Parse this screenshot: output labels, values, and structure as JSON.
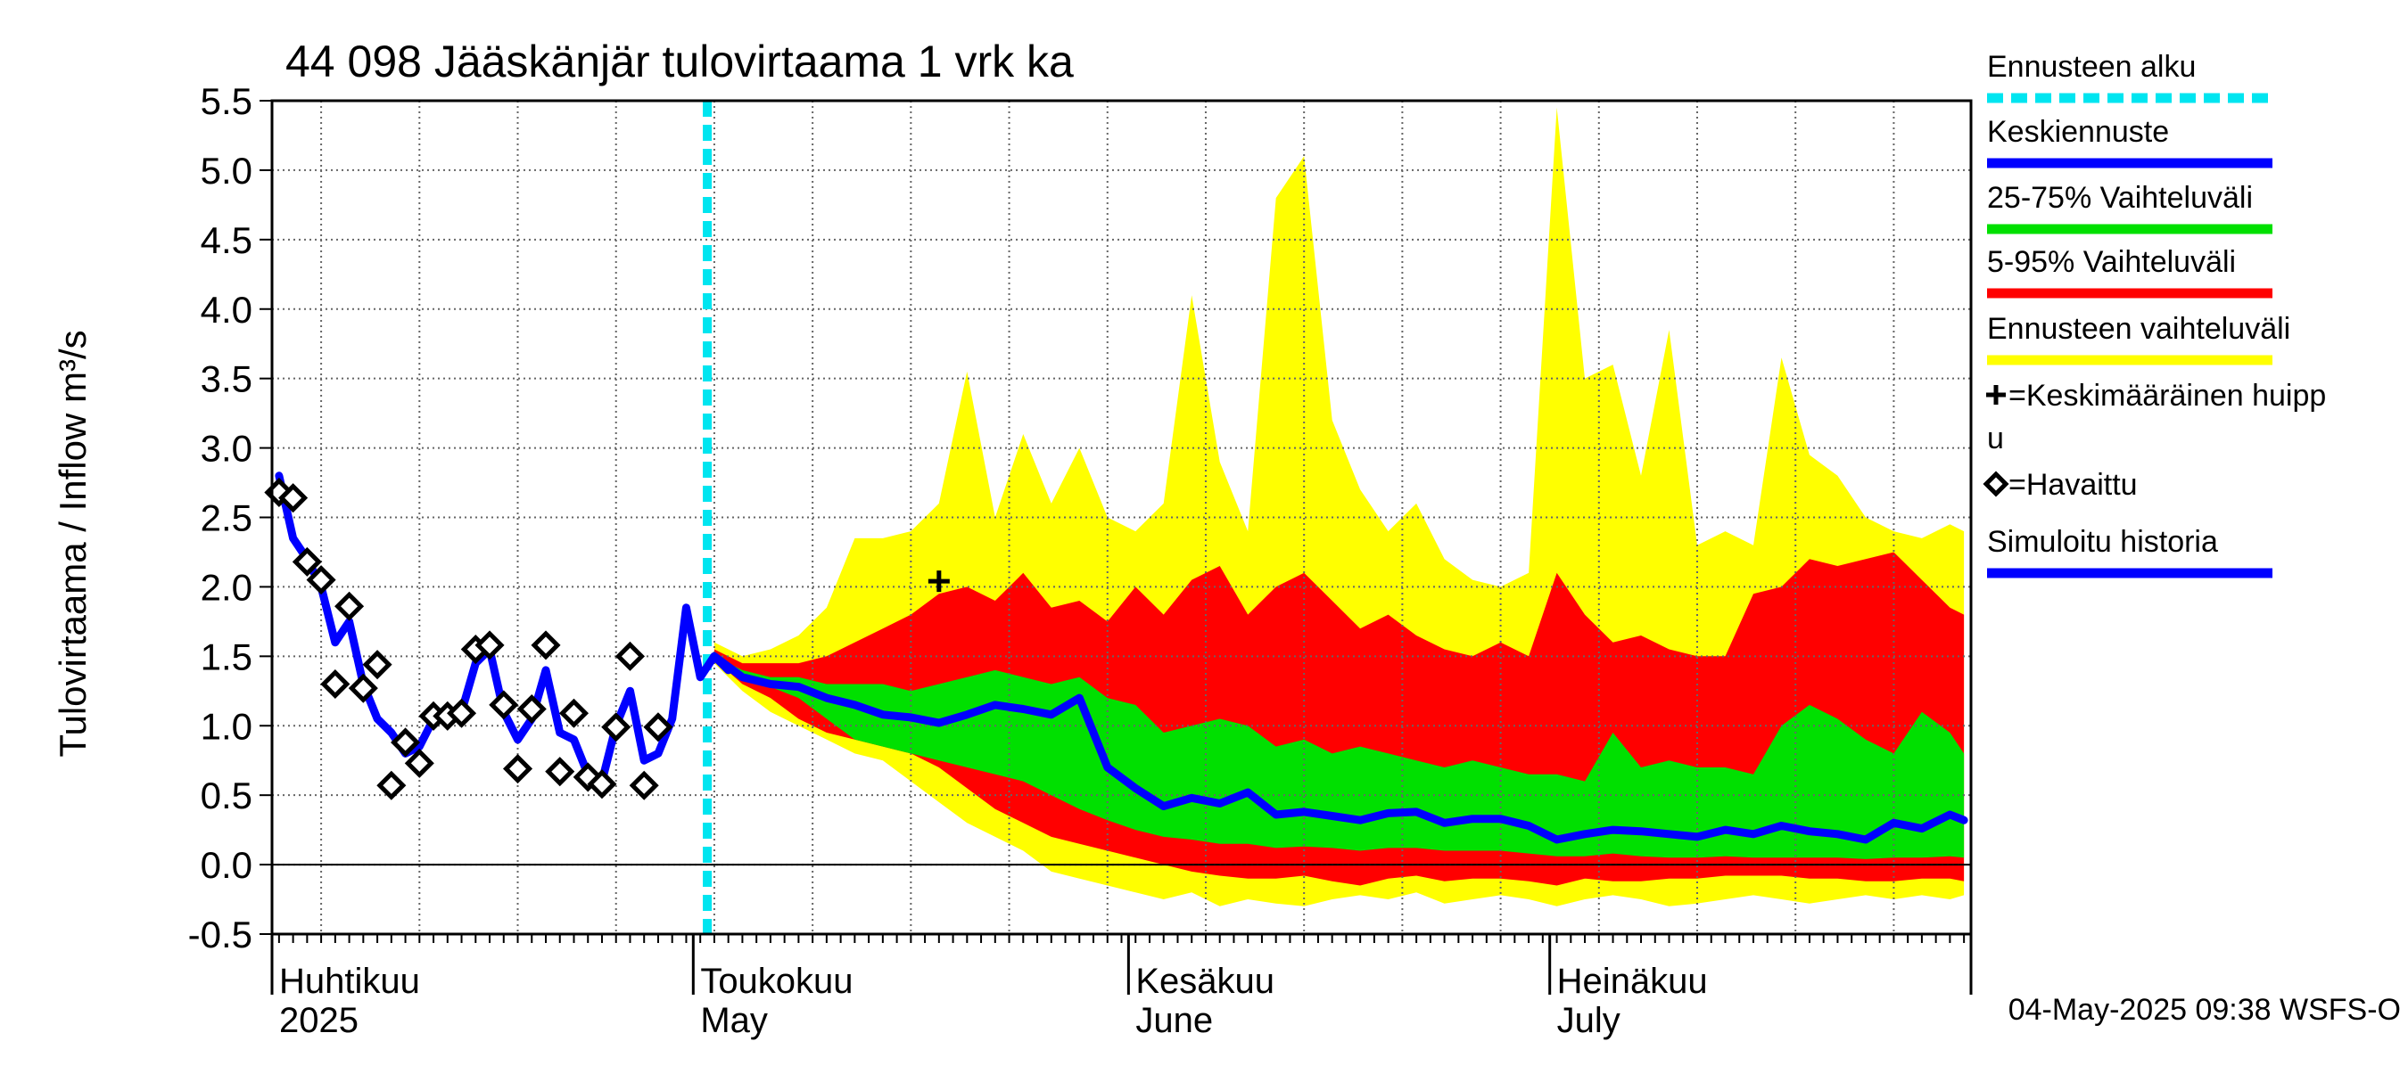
{
  "chart_data": {
    "type": "area",
    "title": "44 098 Jääskänjär tulovirtaama 1 vrk ka",
    "ylabel": "Tulovirtaama / Inflow    m³/s",
    "ylim": [
      -0.5,
      5.5
    ],
    "yticks": [
      "-0.5",
      "0.0",
      "0.5",
      "1.0",
      "1.5",
      "2.0",
      "2.5",
      "3.0",
      "3.5",
      "4.0",
      "4.5",
      "5.0",
      "5.5"
    ],
    "x_unit": "days since 2025-04-01",
    "xlim": [
      -0.5,
      120.5
    ],
    "month_labels": [
      {
        "day": 0,
        "fi": "Huhtikuu",
        "en": "2025"
      },
      {
        "day": 30,
        "fi": "Toukokuu",
        "en": "May"
      },
      {
        "day": 61,
        "fi": "Kesäkuu",
        "en": "June"
      },
      {
        "day": 91,
        "fi": "Heinäkuu",
        "en": "July"
      }
    ],
    "forecast_start_day": 30.5,
    "legend": [
      {
        "label": "Ennusteen alku",
        "color": "#00e5f0",
        "style": "dashed"
      },
      {
        "label": "Keskiennuste",
        "color": "#0000ff",
        "style": "solid"
      },
      {
        "label": "25-75% Vaihteluväli",
        "color": "#00e000",
        "style": "solid"
      },
      {
        "label": "5-95% Vaihteluväli",
        "color": "#ff0000",
        "style": "solid"
      },
      {
        "label": "Ennusteen vaihteluväli",
        "color": "#ffff00",
        "style": "solid"
      },
      {
        "label": "✚=Keskimääräinen huippu",
        "color": "#000000",
        "style": "marker"
      },
      {
        "label": "◇=Havaittu",
        "color": "#000000",
        "style": "marker"
      },
      {
        "label": "Simuloitu historia",
        "color": "#0000ff",
        "style": "solid"
      }
    ],
    "footer": "04-May-2025 09:38 WSFS-O",
    "colors": {
      "sim": "#0000ff",
      "p25_75": "#00e000",
      "p5_95": "#ff0000",
      "full": "#ffff00",
      "forecast_start": "#00e5f0",
      "grid": "#666666"
    },
    "series": [
      {
        "name": "Simuloitu historia",
        "x": [
          0,
          1,
          2,
          3,
          4,
          5,
          6,
          7,
          8,
          9,
          10,
          11,
          12,
          13,
          14,
          15,
          16,
          17,
          18,
          19,
          20,
          21,
          22,
          23,
          24,
          25,
          26,
          27,
          28,
          29,
          30,
          31,
          32
        ],
        "values": [
          2.8,
          2.35,
          2.2,
          2.0,
          1.6,
          1.75,
          1.3,
          1.05,
          0.95,
          0.8,
          0.85,
          1.05,
          1.05,
          1.1,
          1.45,
          1.55,
          1.1,
          0.9,
          1.05,
          1.4,
          0.95,
          0.9,
          0.65,
          0.6,
          1.0,
          1.25,
          0.75,
          0.8,
          1.05,
          1.85,
          1.35,
          1.5,
          1.4
        ]
      },
      {
        "name": "Havaittu",
        "x": [
          0,
          1,
          2,
          3,
          4,
          5,
          6,
          7,
          8,
          9,
          10,
          11,
          12,
          13,
          14,
          15,
          16,
          17,
          18,
          19,
          20,
          21,
          22,
          23,
          24,
          25,
          26,
          27
        ],
        "values": [
          2.68,
          2.64,
          2.18,
          2.05,
          1.3,
          1.86,
          1.27,
          1.44,
          0.57,
          0.88,
          0.73,
          1.07,
          1.07,
          1.09,
          1.55,
          1.58,
          1.15,
          0.69,
          1.12,
          1.58,
          0.67,
          1.09,
          0.63,
          0.58,
          0.99,
          1.5,
          0.57,
          0.99
        ]
      },
      {
        "name": "Keskimääräinen huippu",
        "x": [
          47
        ],
        "values": [
          2.04
        ]
      },
      {
        "name": "Keskiennuste",
        "x": [
          31,
          33,
          35,
          37,
          39,
          41,
          43,
          45,
          47,
          49,
          51,
          53,
          55,
          57,
          59,
          61,
          63,
          65,
          67,
          69,
          71,
          73,
          75,
          77,
          79,
          81,
          83,
          85,
          87,
          89,
          91,
          93,
          95,
          97,
          99,
          101,
          103,
          105,
          107,
          109,
          111,
          113,
          115,
          117,
          119,
          120
        ],
        "values": [
          1.5,
          1.35,
          1.3,
          1.28,
          1.2,
          1.15,
          1.08,
          1.06,
          1.02,
          1.08,
          1.15,
          1.12,
          1.08,
          1.2,
          0.7,
          0.55,
          0.42,
          0.48,
          0.44,
          0.52,
          0.36,
          0.38,
          0.35,
          0.32,
          0.37,
          0.38,
          0.3,
          0.33,
          0.33,
          0.28,
          0.18,
          0.22,
          0.25,
          0.24,
          0.22,
          0.2,
          0.25,
          0.22,
          0.28,
          0.24,
          0.22,
          0.18,
          0.3,
          0.26,
          0.36,
          0.32
        ]
      },
      {
        "name": "25-75% Vaihteluväli",
        "x": [
          31,
          33,
          35,
          37,
          39,
          41,
          43,
          45,
          47,
          49,
          51,
          53,
          55,
          57,
          59,
          61,
          63,
          65,
          67,
          69,
          71,
          73,
          75,
          77,
          79,
          81,
          83,
          85,
          87,
          89,
          91,
          93,
          95,
          97,
          99,
          101,
          103,
          105,
          107,
          109,
          111,
          113,
          115,
          117,
          119,
          120
        ],
        "lower": [
          1.5,
          1.35,
          1.28,
          1.2,
          1.05,
          0.9,
          0.85,
          0.8,
          0.75,
          0.7,
          0.65,
          0.6,
          0.5,
          0.4,
          0.32,
          0.25,
          0.2,
          0.18,
          0.15,
          0.15,
          0.12,
          0.13,
          0.12,
          0.1,
          0.12,
          0.12,
          0.1,
          0.1,
          0.1,
          0.08,
          0.06,
          0.06,
          0.08,
          0.06,
          0.05,
          0.05,
          0.06,
          0.05,
          0.05,
          0.05,
          0.05,
          0.04,
          0.05,
          0.05,
          0.06,
          0.05
        ],
        "upper": [
          1.5,
          1.4,
          1.35,
          1.35,
          1.3,
          1.3,
          1.3,
          1.25,
          1.3,
          1.35,
          1.4,
          1.35,
          1.3,
          1.35,
          1.2,
          1.15,
          0.95,
          1.0,
          1.05,
          1.0,
          0.85,
          0.9,
          0.8,
          0.85,
          0.8,
          0.75,
          0.7,
          0.75,
          0.7,
          0.65,
          0.65,
          0.6,
          0.95,
          0.7,
          0.75,
          0.7,
          0.7,
          0.65,
          1.0,
          1.15,
          1.05,
          0.9,
          0.8,
          1.1,
          0.95,
          0.8
        ]
      },
      {
        "name": "5-95% Vaihteluväli",
        "x": [
          31,
          33,
          35,
          37,
          39,
          41,
          43,
          45,
          47,
          49,
          51,
          53,
          55,
          57,
          59,
          61,
          63,
          65,
          67,
          69,
          71,
          73,
          75,
          77,
          79,
          81,
          83,
          85,
          87,
          89,
          91,
          93,
          95,
          97,
          99,
          101,
          103,
          105,
          107,
          109,
          111,
          113,
          115,
          117,
          119,
          120
        ],
        "lower": [
          1.48,
          1.3,
          1.2,
          1.05,
          0.95,
          0.9,
          0.85,
          0.8,
          0.7,
          0.55,
          0.4,
          0.3,
          0.2,
          0.15,
          0.1,
          0.05,
          0.0,
          -0.05,
          -0.08,
          -0.1,
          -0.1,
          -0.08,
          -0.12,
          -0.15,
          -0.1,
          -0.08,
          -0.12,
          -0.1,
          -0.1,
          -0.12,
          -0.15,
          -0.1,
          -0.12,
          -0.12,
          -0.1,
          -0.1,
          -0.08,
          -0.08,
          -0.08,
          -0.1,
          -0.1,
          -0.12,
          -0.12,
          -0.1,
          -0.1,
          -0.12
        ],
        "upper": [
          1.55,
          1.45,
          1.45,
          1.45,
          1.5,
          1.6,
          1.7,
          1.8,
          1.95,
          2.0,
          1.9,
          2.1,
          1.85,
          1.9,
          1.75,
          2.0,
          1.8,
          2.05,
          2.15,
          1.8,
          2.0,
          2.1,
          1.9,
          1.7,
          1.8,
          1.65,
          1.55,
          1.5,
          1.6,
          1.5,
          2.1,
          1.8,
          1.6,
          1.65,
          1.55,
          1.5,
          1.5,
          1.95,
          2.0,
          2.2,
          2.15,
          2.2,
          2.25,
          2.05,
          1.85,
          1.8
        ]
      },
      {
        "name": "Ennusteen vaihteluväli",
        "x": [
          31,
          33,
          35,
          37,
          39,
          41,
          43,
          45,
          47,
          49,
          51,
          53,
          55,
          57,
          59,
          61,
          63,
          65,
          67,
          69,
          71,
          73,
          75,
          77,
          79,
          81,
          83,
          85,
          87,
          89,
          91,
          93,
          95,
          97,
          99,
          101,
          103,
          105,
          107,
          109,
          111,
          113,
          115,
          117,
          119,
          120
        ],
        "lower": [
          1.45,
          1.25,
          1.1,
          1.0,
          0.9,
          0.8,
          0.75,
          0.6,
          0.45,
          0.3,
          0.2,
          0.1,
          -0.05,
          -0.1,
          -0.15,
          -0.2,
          -0.25,
          -0.2,
          -0.3,
          -0.25,
          -0.28,
          -0.3,
          -0.25,
          -0.22,
          -0.25,
          -0.2,
          -0.28,
          -0.25,
          -0.22,
          -0.25,
          -0.3,
          -0.25,
          -0.22,
          -0.25,
          -0.3,
          -0.28,
          -0.25,
          -0.22,
          -0.25,
          -0.28,
          -0.25,
          -0.22,
          -0.25,
          -0.22,
          -0.25,
          -0.22
        ],
        "upper": [
          1.6,
          1.5,
          1.55,
          1.65,
          1.85,
          2.35,
          2.35,
          2.4,
          2.6,
          3.55,
          2.5,
          3.1,
          2.6,
          3.0,
          2.5,
          2.4,
          2.6,
          4.1,
          2.9,
          2.4,
          4.8,
          5.1,
          3.2,
          2.7,
          2.4,
          2.6,
          2.2,
          2.05,
          2.0,
          2.1,
          5.45,
          3.5,
          3.6,
          2.8,
          3.85,
          2.3,
          2.4,
          2.3,
          3.65,
          2.95,
          2.8,
          2.5,
          2.4,
          2.35,
          2.45,
          2.4
        ]
      }
    ]
  }
}
